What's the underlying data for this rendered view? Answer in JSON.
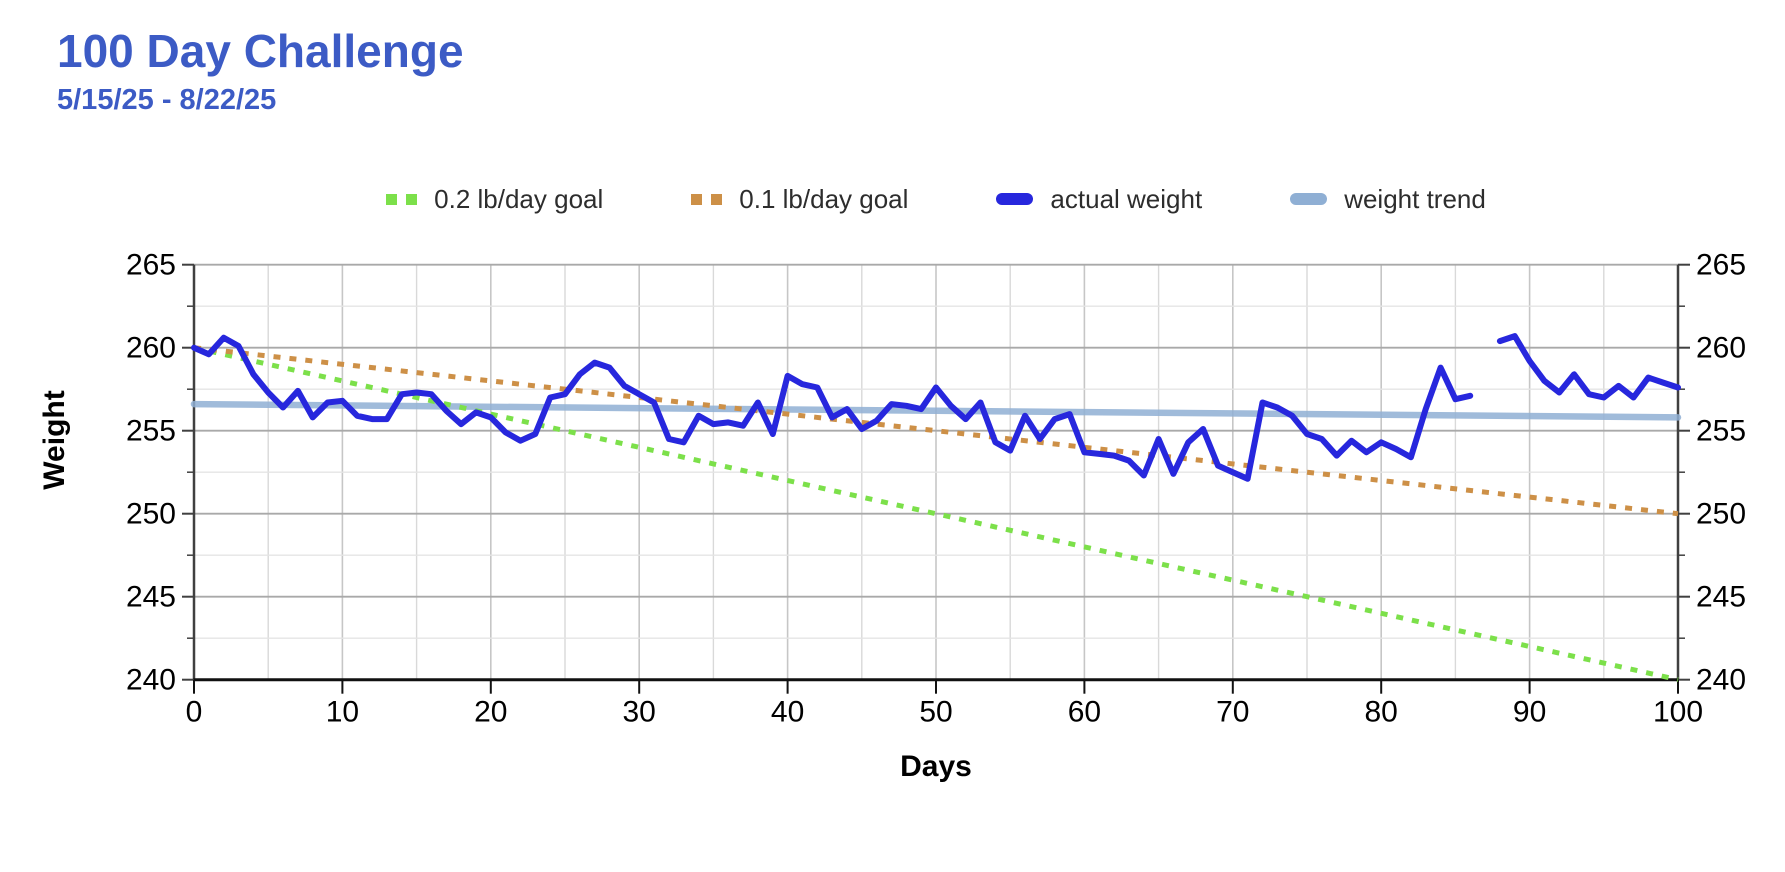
{
  "page": {
    "title": "100 Day Challenge",
    "subtitle": "5/15/25 - 8/22/25",
    "title_color": "#3c5bc5"
  },
  "chart_data": {
    "type": "line",
    "title": "100 Day Challenge",
    "subtitle": "5/15/25 - 8/22/25",
    "xlabel": "Days",
    "ylabel": "Weight",
    "xlim": [
      0,
      100
    ],
    "ylim": [
      240,
      265
    ],
    "x_major_ticks": [
      0,
      10,
      20,
      30,
      40,
      50,
      60,
      70,
      80,
      90,
      100
    ],
    "x_minor_step": 5,
    "y_major_ticks": [
      240,
      245,
      250,
      255,
      260,
      265
    ],
    "y_minor_step": 2.5,
    "y_labels_both_sides": true,
    "grid": true,
    "legend_position": "top",
    "series": [
      {
        "name": "0.2 lb/day goal",
        "color": "#7ce04a",
        "style": "dashed",
        "x": [
          0,
          100
        ],
        "values": [
          260,
          240
        ]
      },
      {
        "name": "0.1 lb/day goal",
        "color": "#cd9047",
        "style": "dashed",
        "x": [
          0,
          100
        ],
        "values": [
          260,
          250
        ]
      },
      {
        "name": "actual weight",
        "color": "#2727dd",
        "style": "solid",
        "values": [
          260.0,
          259.6,
          260.6,
          260.1,
          258.4,
          257.3,
          256.4,
          257.4,
          255.8,
          256.7,
          256.8,
          255.9,
          255.7,
          255.7,
          257.2,
          257.3,
          257.2,
          256.2,
          255.4,
          256.1,
          255.8,
          254.9,
          254.4,
          254.8,
          257.0,
          257.2,
          258.4,
          259.1,
          258.8,
          257.7,
          257.2,
          256.7,
          254.5,
          254.3,
          255.9,
          255.4,
          255.5,
          255.3,
          256.7,
          254.8,
          258.3,
          257.8,
          257.6,
          255.8,
          256.3,
          255.1,
          255.6,
          256.6,
          256.5,
          256.3,
          257.6,
          256.5,
          255.7,
          256.7,
          254.3,
          253.8,
          255.9,
          254.5,
          255.7,
          256.0,
          253.7,
          253.6,
          253.5,
          253.2,
          252.3,
          254.5,
          252.4,
          254.3,
          255.1,
          252.9,
          252.5,
          252.1,
          256.7,
          256.4,
          255.9,
          254.8,
          254.5,
          253.5,
          254.4,
          253.7,
          254.3,
          253.9,
          253.4,
          256.3,
          258.8,
          256.9,
          257.1,
          null,
          260.4,
          260.7,
          259.2,
          258.0,
          257.3,
          258.4,
          257.2,
          257.0,
          257.7,
          257.0,
          258.2,
          257.9,
          257.6
        ]
      },
      {
        "name": "weight trend",
        "color": "#8fafd4",
        "style": "solid",
        "x": [
          0,
          50,
          100
        ],
        "values": [
          256.6,
          256.2,
          255.8
        ]
      }
    ]
  }
}
